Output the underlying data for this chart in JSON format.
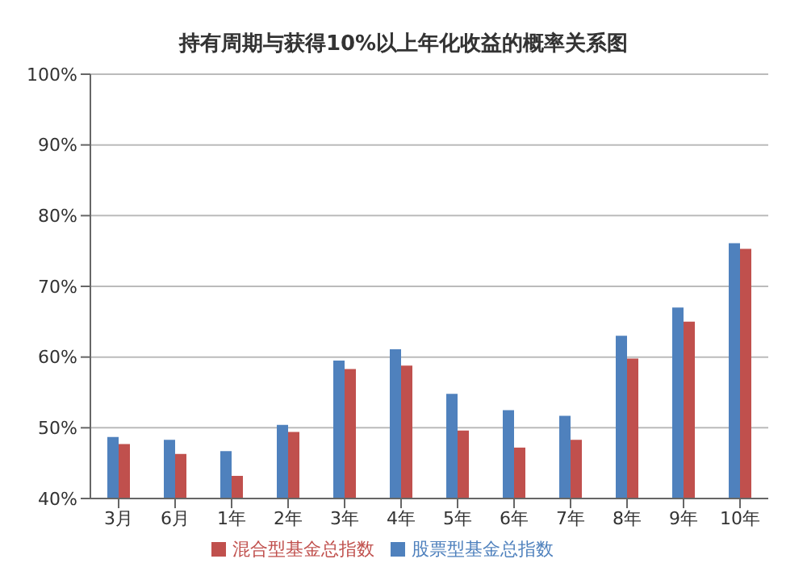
{
  "chart_data": {
    "type": "bar",
    "title": "持有周期与获得10%以上年化收益的概率关系图",
    "categories": [
      "3月",
      "6月",
      "1年",
      "2年",
      "3年",
      "4年",
      "5年",
      "6年",
      "7年",
      "8年",
      "9年",
      "10年"
    ],
    "series": [
      {
        "name": "股票型基金总指数",
        "color": "#4f81bd",
        "values": [
          48.7,
          48.3,
          46.7,
          50.4,
          59.5,
          61.1,
          54.8,
          52.5,
          51.7,
          63,
          67,
          76.1
        ]
      },
      {
        "name": "混合型基金总指数",
        "color": "#c0504d",
        "values": [
          47.7,
          46.3,
          43.2,
          49.4,
          58.3,
          58.8,
          49.6,
          47.2,
          48.3,
          59.8,
          65,
          75.3
        ]
      }
    ],
    "ylim": [
      40,
      100
    ],
    "yticks": [
      {
        "value": 40,
        "label": "40%"
      },
      {
        "value": 50,
        "label": "50%"
      },
      {
        "value": 60,
        "label": "60%"
      },
      {
        "value": 70,
        "label": "70%"
      },
      {
        "value": 80,
        "label": "80%"
      },
      {
        "value": 90,
        "label": "90%"
      },
      {
        "value": 100,
        "label": "100%"
      }
    ],
    "grid": "y",
    "legend": "bottom"
  }
}
